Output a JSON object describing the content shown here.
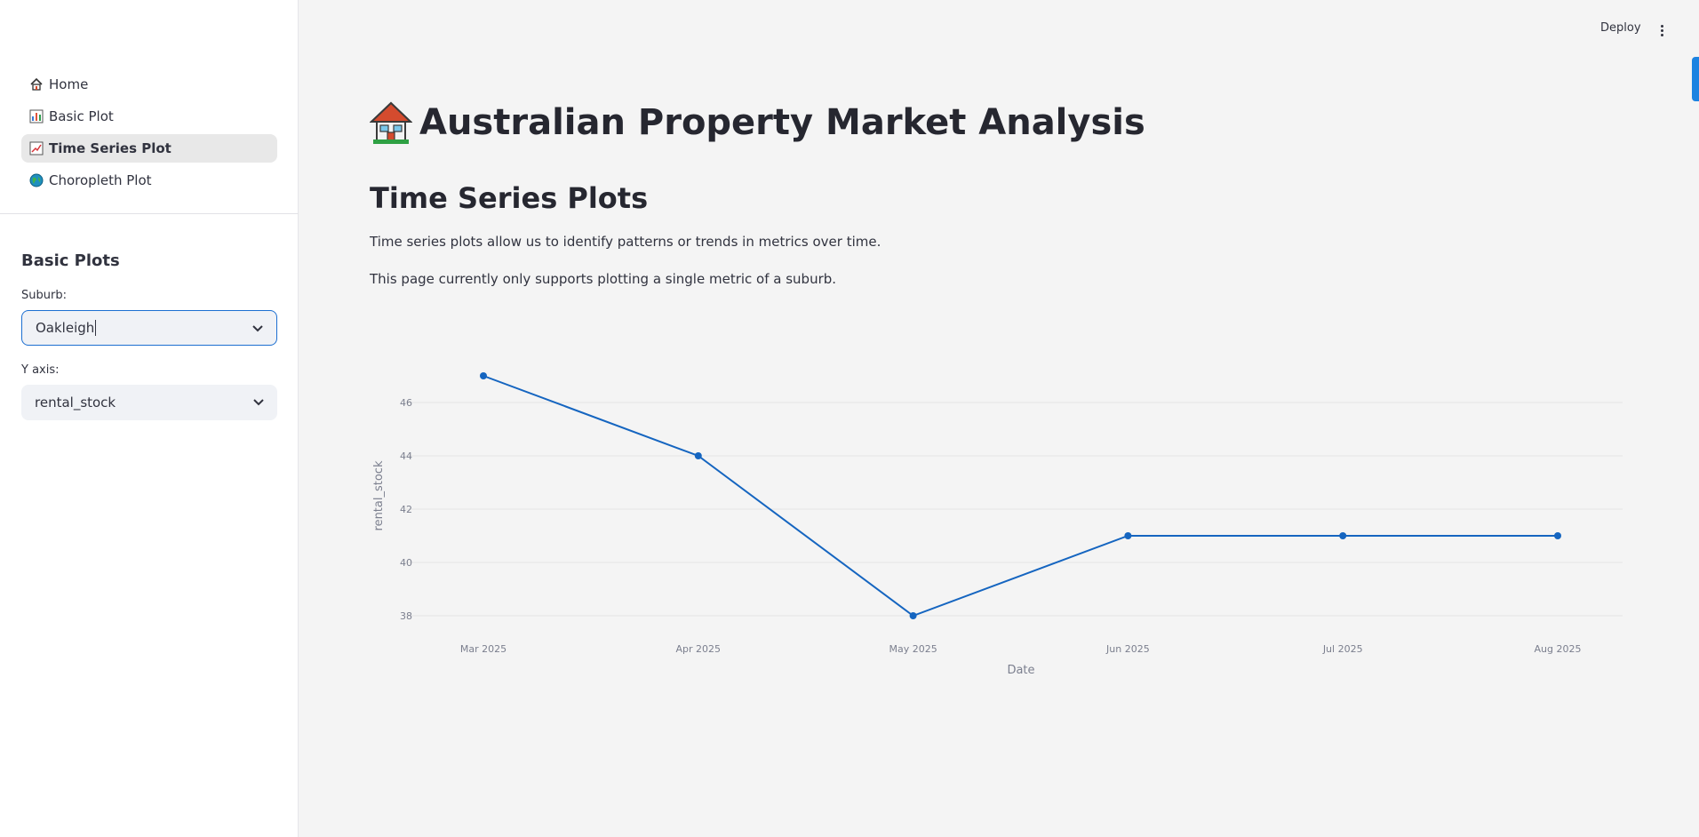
{
  "sidebar": {
    "nav": [
      {
        "label": "Home",
        "icon": "house-icon"
      },
      {
        "label": "Basic Plot",
        "icon": "bar-chart-icon"
      },
      {
        "label": "Time Series Plot",
        "icon": "line-chart-icon",
        "active": true
      },
      {
        "label": "Choropleth Plot",
        "icon": "globe-icon"
      }
    ],
    "section_title": "Basic Plots",
    "suburb_label": "Suburb:",
    "suburb_value": "Oakleigh",
    "yaxis_label": "Y axis:",
    "yaxis_value": "rental_stock"
  },
  "header": {
    "deploy_label": "Deploy"
  },
  "main": {
    "title": "Australian Property Market Analysis",
    "subtitle": "Time Series Plots",
    "para1": "Time series plots allow us to identify patterns or trends in metrics over time.",
    "para2": "This page currently only supports plotting a single metric of a suburb."
  },
  "colors": {
    "accent": "#1c83e1",
    "line": "#1565c0",
    "focus_border": "#1c6fd1"
  },
  "chart_data": {
    "type": "line",
    "x": [
      "Mar 2025",
      "Apr 2025",
      "May 2025",
      "Jun 2025",
      "Jul 2025",
      "Aug 2025"
    ],
    "series": [
      {
        "values": [
          47,
          44,
          38,
          41,
          41,
          41
        ]
      }
    ],
    "xlabel": "Date",
    "ylabel": "rental_stock",
    "yticks": [
      38,
      40,
      42,
      44,
      46
    ],
    "grid": true
  }
}
